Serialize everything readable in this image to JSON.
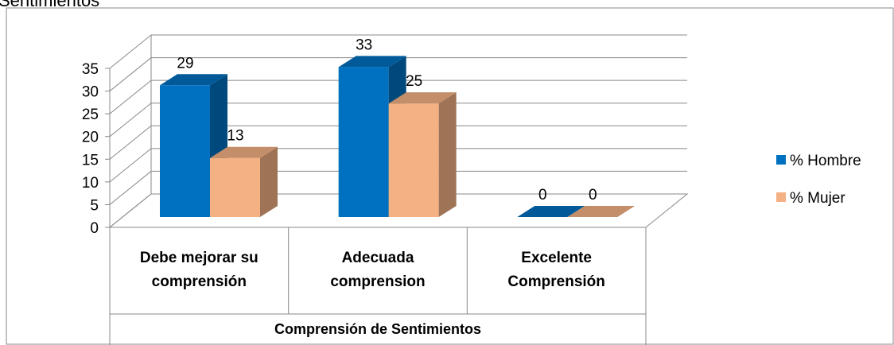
{
  "chart_data": {
    "type": "bar3d",
    "title": "Sentimientos",
    "xlabel": "Comprensión de Sentimientos",
    "categories": [
      "Debe mejorar su comprensión",
      "Adecuada comprension",
      "Excelente Comprensión"
    ],
    "series": [
      {
        "name": "% Hombre",
        "color": "#0070c0",
        "values": [
          29,
          33,
          0
        ]
      },
      {
        "name": "% Mujer",
        "color": "#f4b183",
        "values": [
          13,
          25,
          0
        ]
      }
    ],
    "ylim": [
      0,
      35
    ],
    "yticks": [
      0,
      5,
      10,
      15,
      20,
      25,
      30,
      35
    ],
    "grid": true,
    "legend": "right"
  }
}
